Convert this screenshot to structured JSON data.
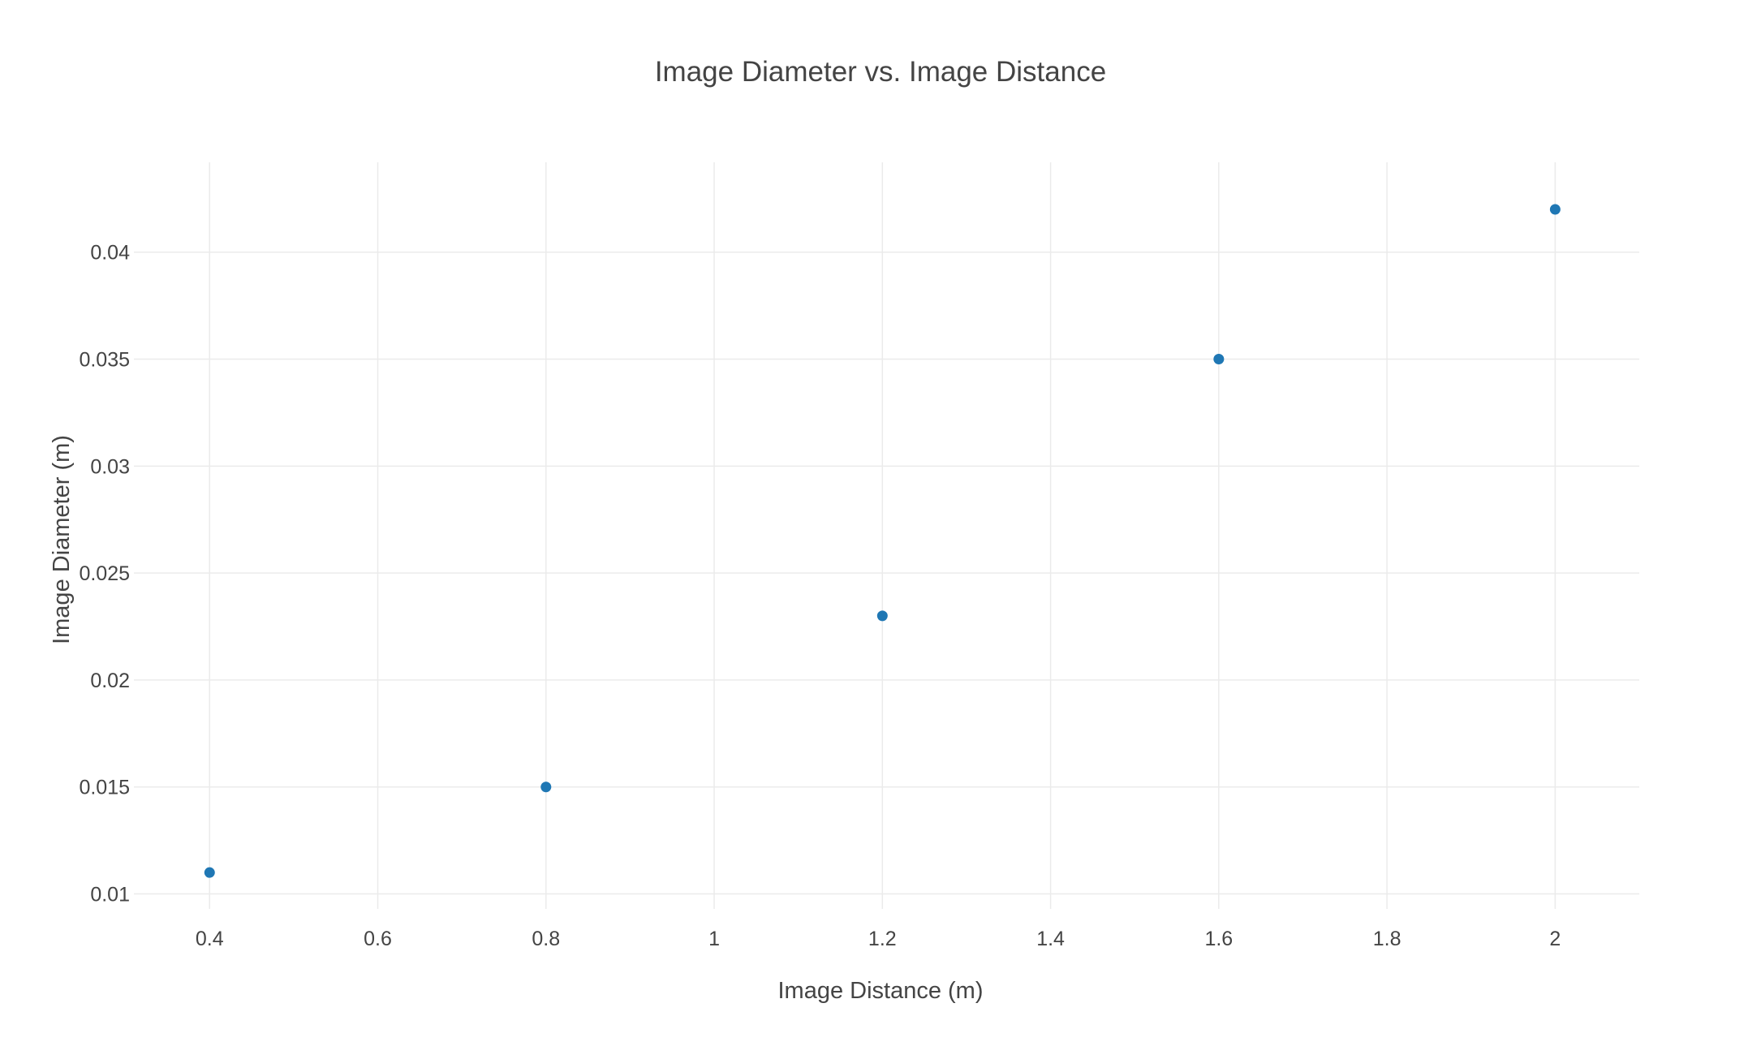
{
  "chart_data": {
    "type": "scatter",
    "title": "Image Diameter vs. Image Distance",
    "xlabel": "Image Distance (m)",
    "ylabel": "Image Diameter (m)",
    "x": [
      0.4,
      0.8,
      1.2,
      1.6,
      2.0
    ],
    "y": [
      0.011,
      0.015,
      0.023,
      0.035,
      0.042
    ],
    "xlim": [
      0.31,
      2.1
    ],
    "ylim": [
      0.0093,
      0.0442
    ],
    "xticks": [
      0.4,
      0.6,
      0.8,
      1.0,
      1.2,
      1.4,
      1.6,
      1.8,
      2.0
    ],
    "xtick_labels": [
      "0.4",
      "0.6",
      "0.8",
      "1",
      "1.2",
      "1.4",
      "1.6",
      "1.8",
      "2"
    ],
    "yticks": [
      0.01,
      0.015,
      0.02,
      0.025,
      0.03,
      0.035,
      0.04
    ],
    "ytick_labels": [
      "0.01",
      "0.015",
      "0.02",
      "0.025",
      "0.03",
      "0.035",
      "0.04"
    ],
    "grid": true,
    "legend": "none",
    "marker_color": "#1f77b4"
  }
}
